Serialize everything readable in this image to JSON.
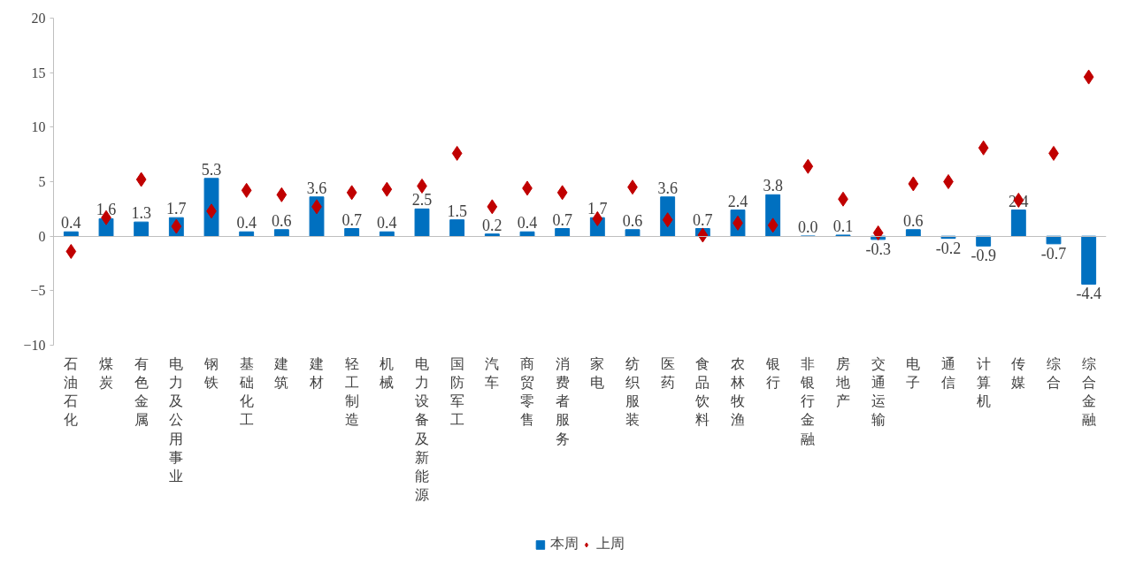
{
  "chart_data": {
    "type": "bar",
    "categories": [
      "石油石化",
      "煤炭",
      "有色金属",
      "电力及公用事业",
      "钢铁",
      "基础化工",
      "建筑",
      "建材",
      "轻工制造",
      "机械",
      "电力设备及新能源",
      "国防军工",
      "汽车",
      "商贸零售",
      "消费者服务",
      "家电",
      "纺织服装",
      "医药",
      "食品饮料",
      "农林牧渔",
      "银行",
      "非银行金融",
      "房地产",
      "交通运输",
      "电子",
      "通信",
      "计算机",
      "传媒",
      "综合",
      "综合金融"
    ],
    "series": [
      {
        "name": "本周",
        "color": "#0070c0",
        "values": [
          0.4,
          1.6,
          1.3,
          1.7,
          5.3,
          0.4,
          0.6,
          3.6,
          0.7,
          0.4,
          2.5,
          1.5,
          0.2,
          0.4,
          0.7,
          1.7,
          0.6,
          3.6,
          0.7,
          2.4,
          3.8,
          0.0,
          0.1,
          -0.3,
          0.6,
          -0.2,
          -0.9,
          2.4,
          -0.7,
          -4.4
        ],
        "value_labels": [
          "0.4",
          "1.6",
          "1.3",
          "1.7",
          "5.3",
          "0.4",
          "0.6",
          "3.6",
          "0.7",
          "0.4",
          "2.5",
          "1.5",
          "0.2",
          "0.4",
          "0.7",
          "1.7",
          "0.6",
          "3.6",
          "0.7",
          "2.4",
          "3.8",
          "0.0",
          "0.1",
          "-0.3",
          "0.6",
          "-0.2",
          "-0.9",
          "2.4",
          "-0.7",
          "-4.4"
        ]
      },
      {
        "name": "上周",
        "type": "scatter",
        "color": "#c00000",
        "marker": "diamond",
        "values": [
          -1.4,
          1.7,
          5.2,
          0.9,
          2.3,
          4.2,
          3.8,
          2.7,
          4.0,
          4.3,
          4.6,
          7.6,
          2.7,
          4.4,
          4.0,
          1.6,
          4.5,
          1.5,
          0.1,
          1.2,
          1.0,
          6.4,
          3.4,
          0.3,
          4.8,
          5.0,
          8.1,
          3.3,
          7.6,
          14.6
        ]
      }
    ],
    "ylim": [
      -10,
      20
    ],
    "yticks": [
      -10,
      -5,
      0,
      5,
      10,
      15,
      20
    ],
    "legend": "bottom"
  }
}
